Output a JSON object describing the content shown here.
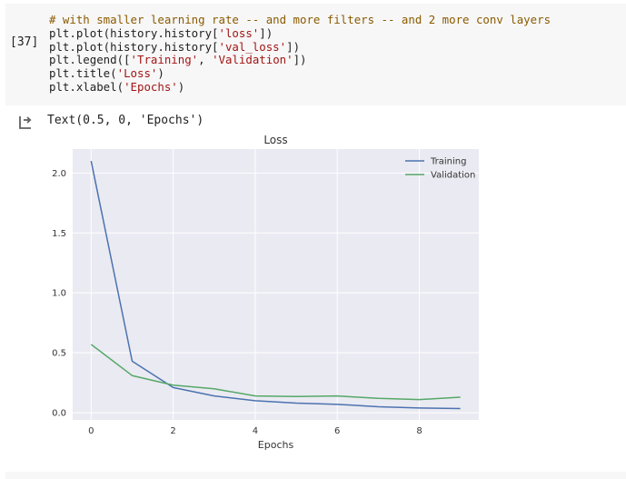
{
  "cell": {
    "execution_count": "[37]",
    "code_lines": [
      [
        {
          "t": "comment",
          "s": "# with smaller learning rate -- and more filters -- and 2 more conv layers"
        }
      ],
      [
        {
          "t": "plain",
          "s": "plt.plot(history.history["
        },
        {
          "t": "str",
          "s": "'loss'"
        },
        {
          "t": "plain",
          "s": "])"
        }
      ],
      [
        {
          "t": "plain",
          "s": "plt.plot(history.history["
        },
        {
          "t": "str",
          "s": "'val_loss'"
        },
        {
          "t": "plain",
          "s": "])"
        }
      ],
      [
        {
          "t": "plain",
          "s": "plt.legend(["
        },
        {
          "t": "str",
          "s": "'Training'"
        },
        {
          "t": "plain",
          "s": ", "
        },
        {
          "t": "str",
          "s": "'Validation'"
        },
        {
          "t": "plain",
          "s": "])"
        }
      ],
      [
        {
          "t": "plain",
          "s": "plt.title("
        },
        {
          "t": "str",
          "s": "'Loss'"
        },
        {
          "t": "plain",
          "s": ")"
        }
      ],
      [
        {
          "t": "plain",
          "s": "plt.xlabel("
        },
        {
          "t": "str",
          "s": "'Epochs'"
        },
        {
          "t": "plain",
          "s": ")"
        }
      ]
    ]
  },
  "output": {
    "icon": "output-arrow-icon",
    "text": "Text(0.5, 0, 'Epochs')"
  },
  "chart_data": {
    "type": "line",
    "title": "Loss",
    "xlabel": "Epochs",
    "ylabel": "",
    "x": [
      0,
      1,
      2,
      3,
      4,
      5,
      6,
      7,
      8,
      9
    ],
    "xticks": [
      "0",
      "2",
      "4",
      "6",
      "8"
    ],
    "yticks": [
      "0.0",
      "0.5",
      "1.0",
      "1.5",
      "2.0"
    ],
    "xlim": [
      -0.45,
      9.45
    ],
    "ylim": [
      -0.06,
      2.2
    ],
    "grid": true,
    "legend_position": "top-right",
    "background": "#eaeaf2",
    "series": [
      {
        "name": "Training",
        "color": "#4c72b0",
        "values": [
          2.1,
          0.43,
          0.21,
          0.14,
          0.1,
          0.08,
          0.07,
          0.05,
          0.04,
          0.035
        ]
      },
      {
        "name": "Validation",
        "color": "#55a868",
        "values": [
          0.57,
          0.31,
          0.23,
          0.2,
          0.14,
          0.135,
          0.14,
          0.12,
          0.11,
          0.13
        ]
      }
    ]
  }
}
